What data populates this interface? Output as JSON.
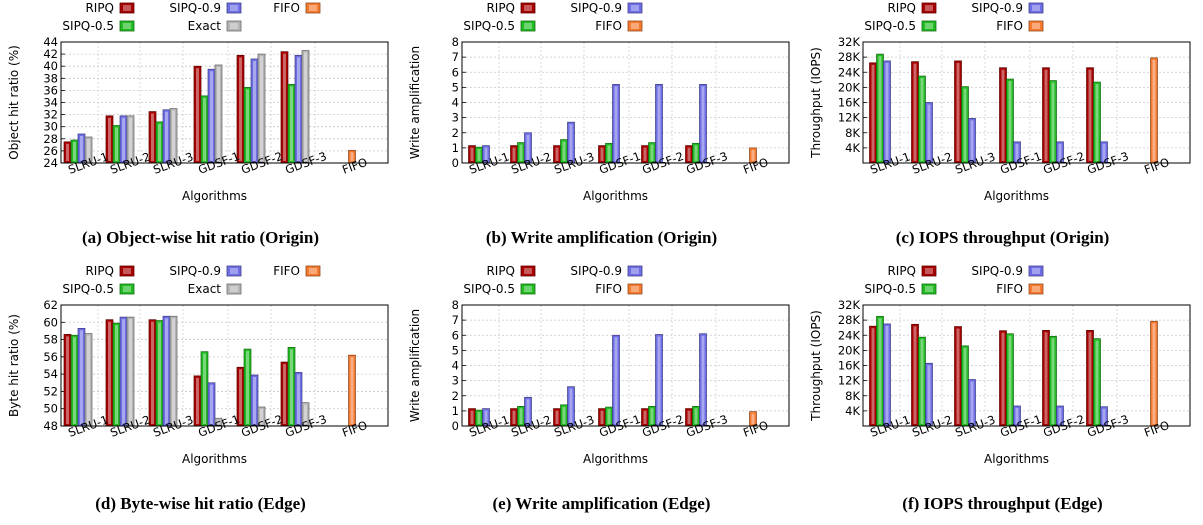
{
  "colors": {
    "RIPQ": "#a80000",
    "SIPQ-0.5": "#22bb22",
    "SIPQ-0.9": "#6d6de6",
    "Exact": "#b4b4b4",
    "FIFO": "#f57a30"
  },
  "chart_data": [
    {
      "type": "bar",
      "caption": "(a) Object-wise hit ratio (Origin)",
      "categories": [
        "SLRU-1",
        "SLRU-2",
        "SLRU-3",
        "GDSF-1",
        "GDSF-2",
        "GDSF-3",
        "FIFO"
      ],
      "series": [
        {
          "name": "RIPQ",
          "values": [
            27.5,
            31.8,
            32.5,
            40.0,
            41.8,
            42.4,
            null
          ]
        },
        {
          "name": "SIPQ-0.5",
          "values": [
            27.8,
            30.2,
            30.8,
            35.1,
            36.5,
            37.0,
            null
          ]
        },
        {
          "name": "SIPQ-0.9",
          "values": [
            28.8,
            31.8,
            32.8,
            39.5,
            41.2,
            41.8,
            null
          ]
        },
        {
          "name": "Exact",
          "values": [
            28.3,
            31.8,
            33.0,
            40.2,
            42.0,
            42.6,
            null
          ]
        },
        {
          "name": "FIFO",
          "values": [
            null,
            null,
            null,
            null,
            null,
            null,
            26.1
          ]
        }
      ],
      "xlabel": "Algorithms",
      "ylabel": "Object hit ratio (%)",
      "ylim": [
        24,
        44
      ],
      "yticks": [
        "24",
        "26",
        "28",
        "30",
        "32",
        "34",
        "36",
        "38",
        "40",
        "42",
        "44"
      ],
      "grid": true,
      "legend": [
        [
          "RIPQ",
          "SIPQ-0.9",
          "FIFO"
        ],
        [
          "SIPQ-0.5",
          "Exact"
        ]
      ]
    },
    {
      "type": "bar",
      "caption": "(b) Write amplification (Origin)",
      "categories": [
        "SLRU-1",
        "SLRU-2",
        "SLRU-3",
        "GDSF-1",
        "GDSF-2",
        "GDSF-3",
        "FIFO"
      ],
      "series": [
        {
          "name": "RIPQ",
          "values": [
            1.15,
            1.15,
            1.15,
            1.15,
            1.15,
            1.15,
            null
          ]
        },
        {
          "name": "SIPQ-0.5",
          "values": [
            1.05,
            1.35,
            1.55,
            1.3,
            1.35,
            1.3,
            null
          ]
        },
        {
          "name": "SIPQ-0.9",
          "values": [
            1.15,
            2.0,
            2.7,
            5.2,
            5.2,
            5.2,
            null
          ]
        },
        {
          "name": "FIFO",
          "values": [
            null,
            null,
            null,
            null,
            null,
            null,
            1.0
          ]
        }
      ],
      "xlabel": "Algorithms",
      "ylabel": "Write amplification",
      "ylim": [
        0,
        8
      ],
      "yticks": [
        "0",
        "1",
        "2",
        "3",
        "4",
        "5",
        "6",
        "7",
        "8"
      ],
      "grid": true,
      "legend": [
        [
          "RIPQ",
          "SIPQ-0.9"
        ],
        [
          "SIPQ-0.5",
          "FIFO"
        ]
      ]
    },
    {
      "type": "bar",
      "caption": "(c) IOPS throughput (Origin)",
      "categories": [
        "SLRU-1",
        "SLRU-2",
        "SLRU-3",
        "GDSF-1",
        "GDSF-2",
        "GDSF-3",
        "FIFO"
      ],
      "series": [
        {
          "name": "RIPQ",
          "values": [
            26500,
            26800,
            27000,
            25200,
            25200,
            25200,
            null
          ]
        },
        {
          "name": "SIPQ-0.5",
          "values": [
            28800,
            23000,
            20200,
            22200,
            21800,
            21400,
            null
          ]
        },
        {
          "name": "SIPQ-0.9",
          "values": [
            27000,
            16000,
            11800,
            5600,
            5600,
            5600,
            null
          ]
        },
        {
          "name": "FIFO",
          "values": [
            null,
            null,
            null,
            null,
            null,
            null,
            27800
          ]
        }
      ],
      "xlabel": "Algorithms",
      "ylabel": "Throughput (IOPS)",
      "ylim": [
        0,
        32000
      ],
      "yticks": [
        "",
        "4K",
        "8K",
        "12K",
        "16K",
        "20K",
        "24K",
        "28K",
        "32K"
      ],
      "grid": true,
      "legend": [
        [
          "RIPQ",
          "SIPQ-0.9"
        ],
        [
          "SIPQ-0.5",
          "FIFO"
        ]
      ]
    },
    {
      "type": "bar",
      "caption": "(d) Byte-wise hit ratio (Edge)",
      "categories": [
        "SLRU-1",
        "SLRU-2",
        "SLRU-3",
        "GDSF-1",
        "GDSF-2",
        "GDSF-3",
        "FIFO"
      ],
      "series": [
        {
          "name": "RIPQ",
          "values": [
            58.6,
            60.3,
            60.3,
            53.8,
            54.8,
            55.4,
            null
          ]
        },
        {
          "name": "SIPQ-0.5",
          "values": [
            58.5,
            59.9,
            60.2,
            56.6,
            56.9,
            57.1,
            null
          ]
        },
        {
          "name": "SIPQ-0.9",
          "values": [
            59.3,
            60.6,
            60.7,
            53.0,
            53.9,
            54.2,
            null
          ]
        },
        {
          "name": "Exact",
          "values": [
            58.7,
            60.6,
            60.7,
            48.9,
            50.2,
            50.7,
            null
          ]
        },
        {
          "name": "FIFO",
          "values": [
            null,
            null,
            null,
            null,
            null,
            null,
            56.2
          ]
        }
      ],
      "xlabel": "Algorithms",
      "ylabel": "Byte hit ratio (%)",
      "ylim": [
        48,
        62
      ],
      "yticks": [
        "48",
        "50",
        "52",
        "54",
        "56",
        "58",
        "60",
        "62"
      ],
      "grid": true,
      "legend": [
        [
          "RIPQ",
          "SIPQ-0.9",
          "FIFO"
        ],
        [
          "SIPQ-0.5",
          "Exact"
        ]
      ]
    },
    {
      "type": "bar",
      "caption": "(e) Write amplification (Edge)",
      "categories": [
        "SLRU-1",
        "SLRU-2",
        "SLRU-3",
        "GDSF-1",
        "GDSF-2",
        "GDSF-3",
        "FIFO"
      ],
      "series": [
        {
          "name": "RIPQ",
          "values": [
            1.15,
            1.15,
            1.15,
            1.15,
            1.15,
            1.15,
            null
          ]
        },
        {
          "name": "SIPQ-0.5",
          "values": [
            1.05,
            1.3,
            1.4,
            1.25,
            1.3,
            1.3,
            null
          ]
        },
        {
          "name": "SIPQ-0.9",
          "values": [
            1.15,
            1.9,
            2.6,
            6.0,
            6.05,
            6.1,
            null
          ]
        },
        {
          "name": "FIFO",
          "values": [
            null,
            null,
            null,
            null,
            null,
            null,
            0.95
          ]
        }
      ],
      "xlabel": "Algorithms",
      "ylabel": "Write amplification",
      "ylim": [
        0,
        8
      ],
      "yticks": [
        "0",
        "1",
        "2",
        "3",
        "4",
        "5",
        "6",
        "7",
        "8"
      ],
      "grid": true,
      "legend": [
        [
          "RIPQ",
          "SIPQ-0.9"
        ],
        [
          "SIPQ-0.5",
          "FIFO"
        ]
      ]
    },
    {
      "type": "bar",
      "caption": "(f) IOPS throughput (Edge)",
      "categories": [
        "SLRU-1",
        "SLRU-2",
        "SLRU-3",
        "GDSF-1",
        "GDSF-2",
        "GDSF-3",
        "FIFO"
      ],
      "series": [
        {
          "name": "RIPQ",
          "values": [
            26400,
            26900,
            26300,
            25200,
            25300,
            25300,
            null
          ]
        },
        {
          "name": "SIPQ-0.5",
          "values": [
            29000,
            23500,
            21200,
            24400,
            23700,
            23100,
            null
          ]
        },
        {
          "name": "SIPQ-0.9",
          "values": [
            27000,
            16600,
            12300,
            5300,
            5300,
            5100,
            null
          ]
        },
        {
          "name": "FIFO",
          "values": [
            null,
            null,
            null,
            null,
            null,
            null,
            27700
          ]
        }
      ],
      "xlabel": "Algorithms",
      "ylabel": "Throughput (IOPS)",
      "ylim": [
        0,
        32000
      ],
      "yticks": [
        "",
        "4K",
        "8K",
        "12K",
        "16K",
        "20K",
        "24K",
        "28K",
        "32K"
      ],
      "grid": true,
      "legend": [
        [
          "RIPQ",
          "SIPQ-0.9"
        ],
        [
          "SIPQ-0.5",
          "FIFO"
        ]
      ]
    }
  ]
}
